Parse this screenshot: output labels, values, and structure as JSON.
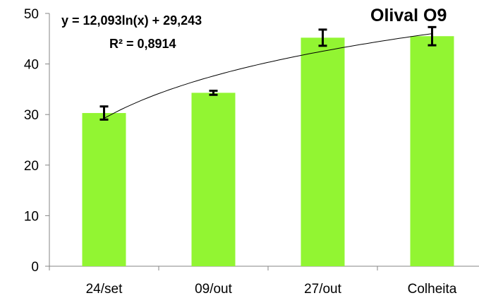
{
  "chart_data": {
    "type": "bar",
    "title": "Olival O9",
    "categories": [
      "24/set",
      "09/out",
      "27/out",
      "Colheita"
    ],
    "series": [
      {
        "values": [
          30.3,
          34.3,
          45.2,
          45.5
        ],
        "error": [
          1.3,
          0.4,
          1.6,
          1.8
        ],
        "color": "#92f532"
      }
    ],
    "ylim": [
      0,
      50
    ],
    "yticks": [
      0,
      10,
      20,
      30,
      40,
      50
    ],
    "xlabel": "",
    "ylabel": "",
    "grid": false,
    "legend": "none",
    "trendline": {
      "type": "logarithmic",
      "a": 12.093,
      "b": 29.243,
      "equation": "y = 12,093ln(x) + 29,243",
      "r_squared": "R² = 0,8914",
      "color": "#000000"
    }
  }
}
